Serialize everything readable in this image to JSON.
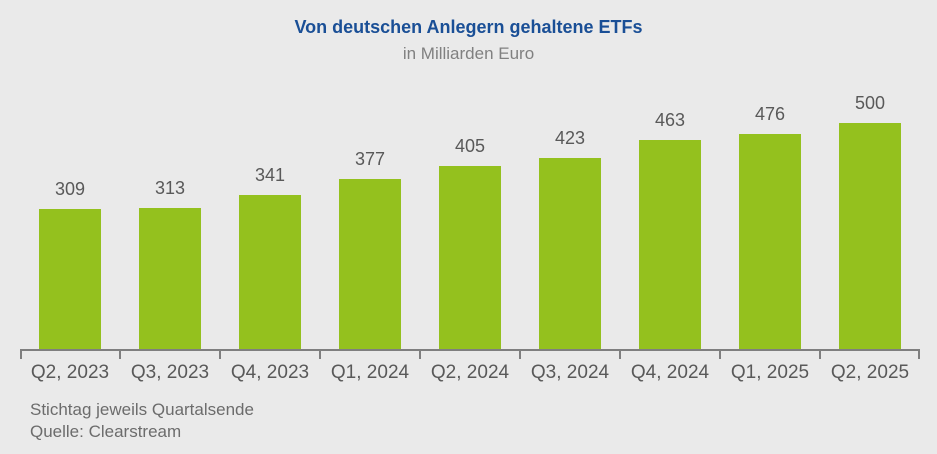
{
  "chart_data": {
    "type": "bar",
    "title": "Von deutschen Anlegern gehaltene ETFs",
    "subtitle": "in Milliarden Euro",
    "categories": [
      "Q2, 2023",
      "Q3, 2023",
      "Q4, 2023",
      "Q1, 2024",
      "Q2, 2024",
      "Q3, 2024",
      "Q4, 2024",
      "Q1, 2025",
      "Q2, 2025"
    ],
    "values": [
      309,
      313,
      341,
      377,
      405,
      423,
      463,
      476,
      500
    ],
    "xlabel": "",
    "ylabel": "",
    "ylim": [
      0,
      500
    ],
    "grid": false,
    "legend": false,
    "value_labels_shown": true,
    "bar_color": "#94C11E"
  },
  "footer": {
    "line1": "Stichtag jeweils Quartalsende",
    "line2": "Quelle: Clearstream"
  },
  "colors": {
    "background": "#EAEAEA",
    "title": "#1A4F96",
    "bar": "#94C11E",
    "label": "#595959",
    "axis": "#7F7F7F",
    "footer": "#6C6C6C"
  }
}
